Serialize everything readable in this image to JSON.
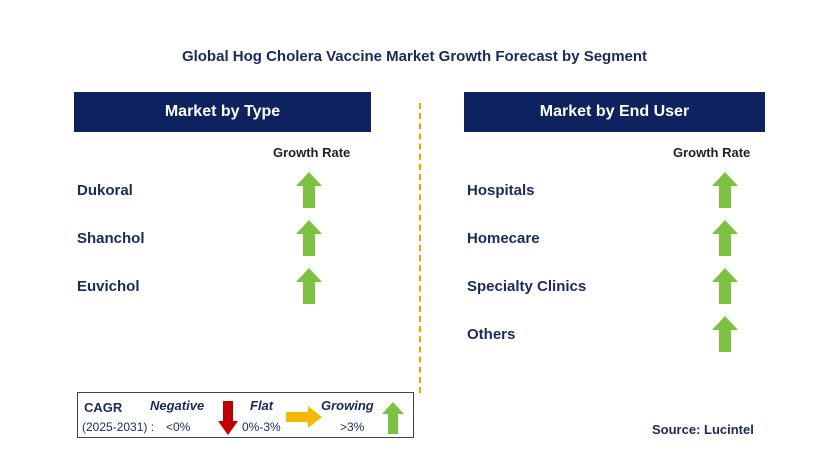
{
  "title": "Global Hog Cholera Vaccine Market Growth Forecast by Segment",
  "left_panel": {
    "header": "Market by Type",
    "growth_label": "Growth Rate",
    "items": [
      {
        "label": "Dukoral",
        "trend": "growing"
      },
      {
        "label": "Shanchol",
        "trend": "growing"
      },
      {
        "label": "Euvichol",
        "trend": "growing"
      }
    ]
  },
  "right_panel": {
    "header": "Market by End User",
    "growth_label": "Growth Rate",
    "items": [
      {
        "label": "Hospitals",
        "trend": "growing"
      },
      {
        "label": "Homecare",
        "trend": "growing"
      },
      {
        "label": "Specialty Clinics",
        "trend": "growing"
      },
      {
        "label": "Others",
        "trend": "growing"
      }
    ]
  },
  "legend": {
    "cagr": "CAGR",
    "period": "(2025-2031) :",
    "negative": "Negative",
    "negative_range": "<0%",
    "flat": "Flat",
    "flat_range": "0%-3%",
    "growing": "Growing",
    "growing_range": ">3%"
  },
  "source": "Source: Lucintel",
  "colors": {
    "header_bg": "#0f2260",
    "growing": "#7dc142",
    "negative": "#c00000",
    "flat": "#f5b800",
    "divider": "#f0a000"
  }
}
